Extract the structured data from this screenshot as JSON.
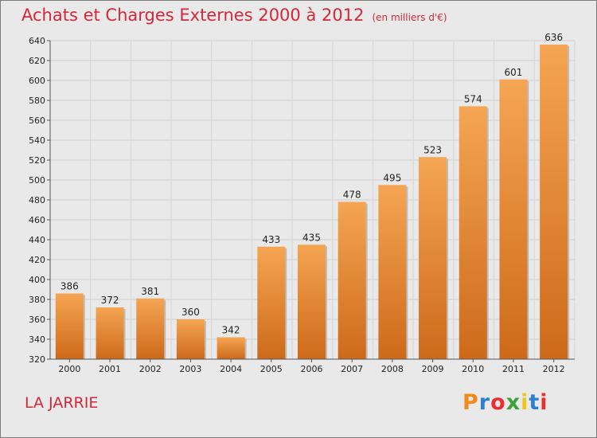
{
  "header": {
    "title": "Achats et Charges Externes 2000 à 2012",
    "subtitle": "(en milliers d'€)"
  },
  "footer": {
    "commune": "LA JARRIE",
    "logo_text": "Proxiti"
  },
  "colors": {
    "bar_light": "#f5a553",
    "bar_dark": "#cd6a1a",
    "title": "#d2293a",
    "background": "#e9e9e9"
  },
  "chart_data": {
    "type": "bar",
    "title": "Achats et Charges Externes 2000 à 2012",
    "subtitle": "(en milliers d'€)",
    "categories": [
      "2000",
      "2001",
      "2002",
      "2003",
      "2004",
      "2005",
      "2006",
      "2007",
      "2008",
      "2009",
      "2010",
      "2011",
      "2012"
    ],
    "values": [
      386,
      372,
      381,
      360,
      342,
      433,
      435,
      478,
      495,
      523,
      574,
      601,
      636
    ],
    "ylim": [
      320,
      640
    ],
    "yticks": [
      320,
      340,
      360,
      380,
      400,
      420,
      440,
      460,
      480,
      500,
      520,
      540,
      560,
      580,
      600,
      620,
      640
    ],
    "grid": true,
    "data_labels": true,
    "xlabel": "",
    "ylabel": ""
  }
}
